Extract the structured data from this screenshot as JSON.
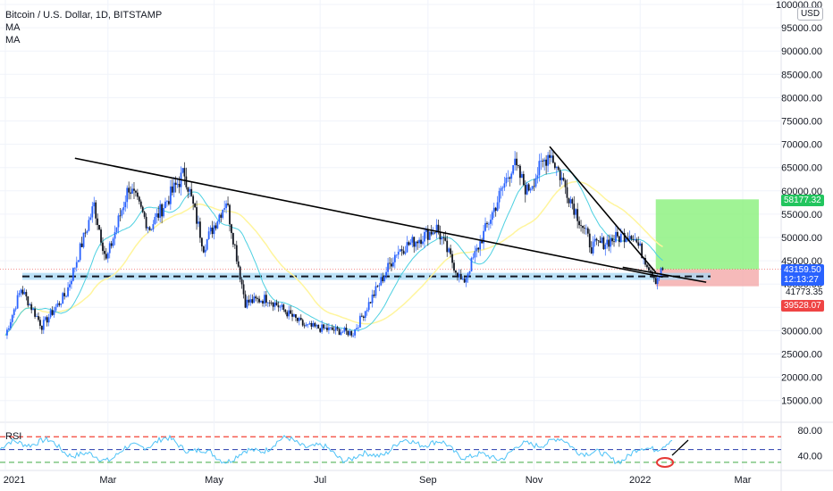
{
  "header": {
    "symbol_title": "Bitcoin / U.S. Dollar, 1D, BITSTAMP",
    "indicators": [
      "MA",
      "MA"
    ],
    "currency_badge": "USD"
  },
  "colors": {
    "up": "#26a69a",
    "down": "#131722",
    "candle_up_fill": "#2962ff",
    "ma_fast": "#4dd0e1",
    "ma_slow": "#fff59d",
    "support_zone": "#a6d8f5",
    "target_zone": "#88f07a",
    "stop_zone": "#f4a9a9",
    "rsi": "#4fc3f7",
    "rsi_upper": "#f44336",
    "rsi_mid": "#3f51b5",
    "rsi_lower": "#66bb6a",
    "price_tag": "#2962ff",
    "target_tag": "#22c55e",
    "stop_tag": "#ef4444"
  },
  "chart_data": {
    "type": "candlestick",
    "title": "Bitcoin / U.S. Dollar, 1D, BITSTAMP",
    "x_axis": {
      "ticks": [
        "2021",
        "Mar",
        "May",
        "Jul",
        "Sep",
        "Nov",
        "2022",
        "Mar"
      ]
    },
    "y_axis": {
      "range": [
        10000,
        100000
      ],
      "ticks": [
        "100000.00",
        "95000.00",
        "90000.00",
        "85000.00",
        "80000.00",
        "75000.00",
        "70000.00",
        "65000.00",
        "60000.00",
        "55000.00",
        "50000.00",
        "45000.00",
        "40000.00",
        "35000.00",
        "30000.00",
        "25000.00",
        "20000.00",
        "15000.00"
      ],
      "unit": "USD"
    },
    "price_path": [
      [
        "2021-01-01",
        29000
      ],
      [
        "2021-01-10",
        39000
      ],
      [
        "2021-01-22",
        31000
      ],
      [
        "2021-02-05",
        38000
      ],
      [
        "2021-02-21",
        57000
      ],
      [
        "2021-02-28",
        45000
      ],
      [
        "2021-03-13",
        61000
      ],
      [
        "2021-03-25",
        52000
      ],
      [
        "2021-04-14",
        64000
      ],
      [
        "2021-04-25",
        48000
      ],
      [
        "2021-05-08",
        58000
      ],
      [
        "2021-05-19",
        36000
      ],
      [
        "2021-06-01",
        37000
      ],
      [
        "2021-06-22",
        31000
      ],
      [
        "2021-07-20",
        29500
      ],
      [
        "2021-08-14",
        47000
      ],
      [
        "2021-09-06",
        52000
      ],
      [
        "2021-09-21",
        40000
      ],
      [
        "2021-10-20",
        66000
      ],
      [
        "2021-10-28",
        60000
      ],
      [
        "2021-11-10",
        68500
      ],
      [
        "2021-12-04",
        48000
      ],
      [
        "2021-12-27",
        51000
      ],
      [
        "2022-01-10",
        41000
      ],
      [
        "2022-01-14",
        43159.5
      ]
    ],
    "last_price": "43159.50",
    "countdown": "12:13:27",
    "crosshair_price": "41773.35",
    "target_price": "58177.32",
    "stop_price": "39528.07",
    "support_zone": [
      40900,
      42400
    ],
    "trendlines": [
      {
        "from": [
          "2021-02-10",
          67000
        ],
        "to": [
          "2022-01-14",
          41500
        ]
      },
      {
        "from": [
          "2021-11-10",
          69500
        ],
        "to": [
          "2022-01-10",
          42500
        ]
      },
      {
        "from": [
          "2021-12-22",
          43600
        ],
        "to": [
          "2022-02-08",
          40400
        ]
      }
    ],
    "position": {
      "entry": 43159.5,
      "target": 58177.32,
      "stop": 39528.07,
      "start": "2022-01-10",
      "end": "2022-03-01"
    },
    "rsi": {
      "label": "RSI",
      "levels": [
        70,
        50,
        30
      ],
      "ticks": [
        "80.00",
        "40.00"
      ],
      "range": [
        20,
        90
      ]
    },
    "grid": true
  }
}
